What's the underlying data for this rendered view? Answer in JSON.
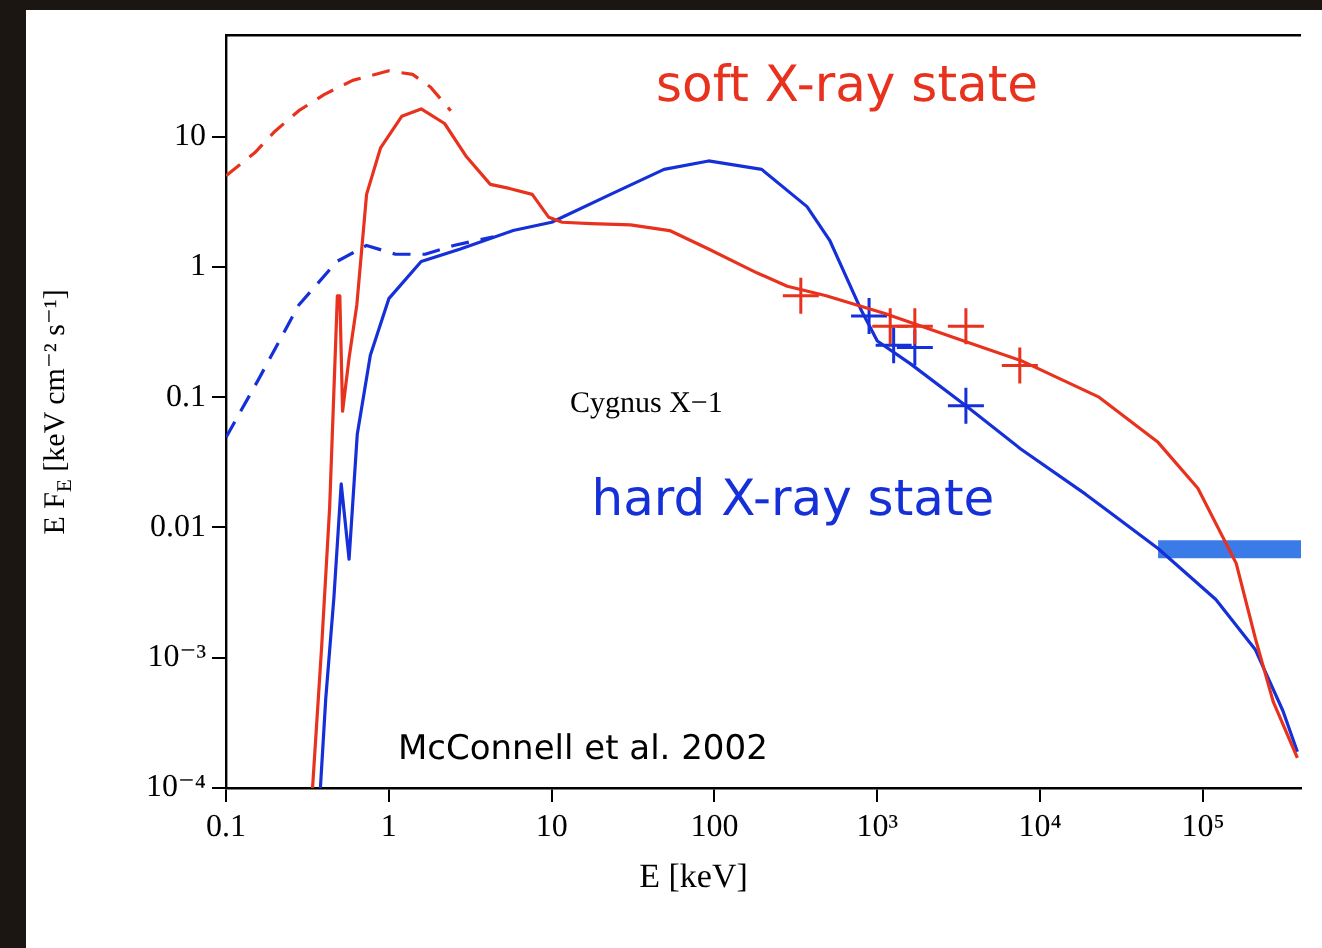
{
  "chart_data": {
    "type": "line",
    "xlabel": "E [keV]",
    "ylabel": "E F$_{E}$ [keV cm⁻² s⁻¹]",
    "log": "xy",
    "grid": false,
    "legend": false,
    "xlim": [
      0.1,
      400000
    ],
    "xticks": [
      0.1,
      1,
      10,
      100,
      {
        "value": 1000,
        "label": "10³"
      },
      {
        "value": 10000,
        "label": "10⁴"
      },
      {
        "value": 100000,
        "label": "10⁵"
      }
    ],
    "ylim": [
      0.0001,
      60
    ],
    "yticks": [
      {
        "value": 0.0001,
        "label": "10⁻⁴"
      },
      {
        "value": 0.001,
        "label": "10⁻³"
      },
      0.01,
      0.1,
      1,
      10
    ],
    "annotations": [
      "Cygnus X−1",
      "McConnell et al. 2002"
    ],
    "series": [
      {
        "color": "#e8321e",
        "line_style": "dashed",
        "marker": "none",
        "x": [
          0.1,
          0.15,
          0.2,
          0.28,
          0.4,
          0.6,
          1,
          1.4,
          1.8,
          2.4
        ],
        "values": [
          5,
          7.5,
          11,
          15.8,
          21,
          27,
          32,
          30,
          24,
          15.8
        ]
      },
      {
        "name": "soft X-ray state",
        "color": "#e8321e",
        "line_style": "solid",
        "marker": "none",
        "x": [
          0.34,
          0.387,
          0.433,
          0.483,
          0.5,
          0.52,
          0.57,
          0.636,
          0.73,
          0.89,
          1.2,
          1.58,
          2.2,
          3,
          4.2,
          5.5,
          7.6,
          9.6,
          11.6,
          17.5,
          30.5,
          53,
          92,
          182,
          280,
          485,
          1100,
          3400,
          7700,
          23000,
          53000,
          93000,
          160000,
          210000,
          270000,
          380000
        ],
        "values": [
          0.0001,
          0.00123,
          0.0142,
          0.6,
          0.6,
          0.078,
          0.2,
          0.51,
          3.6,
          8.2,
          14.3,
          16.3,
          12.6,
          7,
          4.3,
          4,
          3.6,
          2.4,
          2.2,
          2.15,
          2.1,
          1.9,
          1.37,
          0.9,
          0.71,
          0.6,
          0.44,
          0.27,
          0.19,
          0.1,
          0.045,
          0.02,
          0.0053,
          0.0014,
          0.00046,
          0.00017
        ]
      },
      {
        "type": "scatter",
        "color": "#e8321e",
        "marker": "cross",
        "x": [
          339,
          1200,
          1700,
          3500,
          7500
        ],
        "values": [
          0.6,
          0.35,
          0.35,
          0.35,
          0.175
        ]
      },
      {
        "color": "#1530d8",
        "line_style": "dashed",
        "marker": "none",
        "x": [
          0.1,
          0.16,
          0.28,
          0.48,
          0.73,
          1.1,
          1.67,
          2.5,
          4.4
        ],
        "values": [
          0.049,
          0.14,
          0.51,
          1.1,
          1.46,
          1.25,
          1.25,
          1.46,
          1.7
        ]
      },
      {
        "name": "hard X-ray state",
        "color": "#1530d8",
        "line_style": "solid",
        "marker": "none",
        "x": [
          0.38,
          0.41,
          0.46,
          0.51,
          0.57,
          0.64,
          0.77,
          1,
          1.58,
          2.75,
          5.8,
          10,
          23,
          49,
          92,
          195,
          370,
          510,
          800,
          1000,
          1600,
          3500,
          7600,
          19000,
          53000,
          120000,
          210000,
          310000,
          380000
        ],
        "values": [
          0.0001,
          0.00049,
          0.0029,
          0.0216,
          0.0057,
          0.052,
          0.21,
          0.57,
          1.1,
          1.37,
          1.9,
          2.2,
          3.6,
          5.6,
          6.5,
          5.6,
          2.9,
          1.6,
          0.46,
          0.27,
          0.18,
          0.086,
          0.04,
          0.018,
          0.0069,
          0.0028,
          0.00115,
          0.00039,
          0.00019
        ]
      },
      {
        "type": "scatter",
        "color": "#1530d8",
        "marker": "cross",
        "x": [
          890,
          1260,
          1700,
          3500
        ],
        "values": [
          0.42,
          0.25,
          0.24,
          0.086
        ]
      },
      {
        "color": "#3b7be8",
        "line_style": "solid",
        "marker": "none",
        "x": [
          53000,
          400000
        ],
        "values": [
          0.0068,
          0.0068
        ]
      }
    ]
  }
}
